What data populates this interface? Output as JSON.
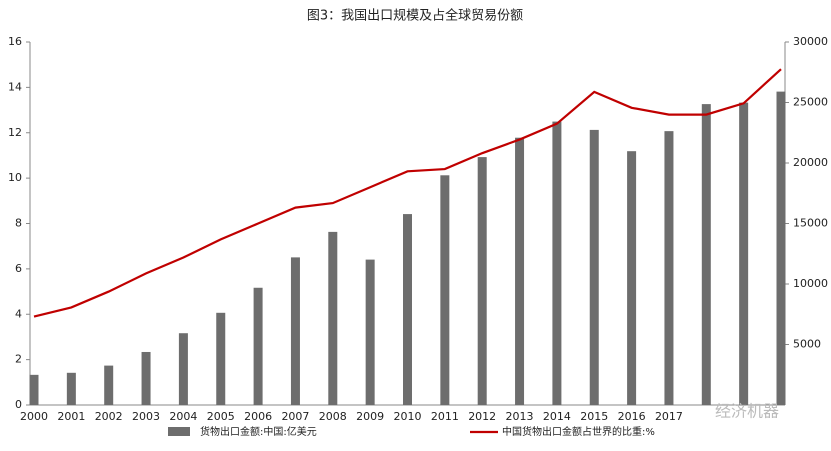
{
  "chart_data": {
    "type": "bar-line",
    "title": "图3：我国出口规模及占全球贸易份额",
    "categories": [
      "2000",
      "2001",
      "2002",
      "2003",
      "2004",
      "2005",
      "2006",
      "2007",
      "2008",
      "2009",
      "2010",
      "2011",
      "2012",
      "2013",
      "2014",
      "2015",
      "2016",
      "2017",
      null,
      null,
      null
    ],
    "series": [
      {
        "name": "货物出口金额:中国:亿美元",
        "type": "bar",
        "color": "#6d6d6d",
        "axis": "y2",
        "values": [
          2492,
          2661,
          3256,
          4382,
          5933,
          7620,
          9689,
          12200,
          14307,
          12016,
          15778,
          18984,
          20487,
          22090,
          23423,
          22735,
          20976,
          22633,
          24867,
          24990,
          25900
        ]
      },
      {
        "name": "中国货物出口金额占世界的比重:%",
        "type": "line",
        "color": "#c00000",
        "values": [
          3.9,
          4.3,
          5.0,
          5.8,
          6.5,
          7.3,
          8.0,
          8.7,
          8.9,
          9.6,
          10.3,
          10.4,
          11.1,
          11.7,
          12.4,
          13.8,
          13.1,
          12.8,
          12.8,
          13.3,
          14.8
        ]
      }
    ],
    "ylim": [
      0,
      16
    ],
    "yticks": [
      0,
      2,
      4,
      6,
      8,
      10,
      12,
      14,
      16
    ],
    "y2lim": [
      0,
      30000
    ],
    "y2ticks": [
      5000,
      10000,
      15000,
      20000,
      25000,
      30000
    ],
    "watermark": "经济机器"
  }
}
